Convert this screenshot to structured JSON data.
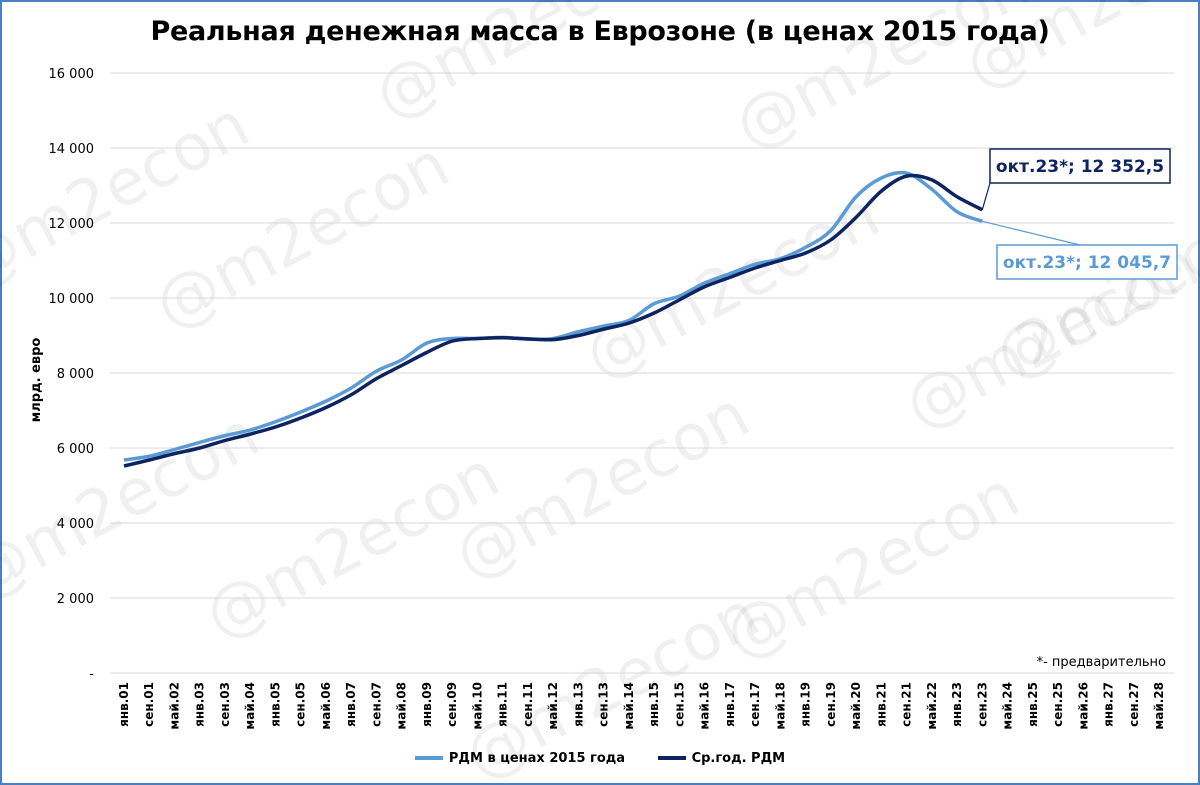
{
  "chart_data": {
    "type": "line",
    "title": "Реальная денежная масса в Еврозоне (в ценах 2015 года)",
    "ylabel": "млрд. евро",
    "ylim": [
      0,
      16000
    ],
    "yticks": [
      {
        "value": 0,
        "label": "-"
      },
      {
        "value": 2000,
        "label": "2 000"
      },
      {
        "value": 4000,
        "label": "4 000"
      },
      {
        "value": 6000,
        "label": "6 000"
      },
      {
        "value": 8000,
        "label": "8 000"
      },
      {
        "value": 10000,
        "label": "10 000"
      },
      {
        "value": 12000,
        "label": "12 000"
      },
      {
        "value": 14000,
        "label": "14 000"
      },
      {
        "value": 16000,
        "label": "16 000"
      }
    ],
    "xticks": [
      "янв.01",
      "сен.01",
      "май.02",
      "янв.03",
      "сен.03",
      "май.04",
      "янв.05",
      "сен.05",
      "май.06",
      "янв.07",
      "сен.07",
      "май.08",
      "янв.09",
      "сен.09",
      "май.10",
      "янв.11",
      "сен.11",
      "май.12",
      "янв.13",
      "сен.13",
      "май.14",
      "янв.15",
      "сен.15",
      "май.16",
      "янв.17",
      "сен.17",
      "май.18",
      "янв.19",
      "сен.19",
      "май.20",
      "янв.21",
      "сен.21",
      "май.22",
      "янв.23",
      "сен.23",
      "май.24",
      "янв.25",
      "сен.25",
      "май.26",
      "янв.27",
      "сен.27",
      "май.28"
    ],
    "grid": true,
    "legend_position": "bottom",
    "series": [
      {
        "name": "РДМ в ценах 2015 года",
        "color": "#5b9bd5",
        "points": [
          [
            "янв.01",
            5680
          ],
          [
            "сен.01",
            5780
          ],
          [
            "май.02",
            5960
          ],
          [
            "янв.03",
            6150
          ],
          [
            "сен.03",
            6330
          ],
          [
            "май.04",
            6480
          ],
          [
            "янв.05",
            6700
          ],
          [
            "сен.05",
            6960
          ],
          [
            "май.06",
            7250
          ],
          [
            "янв.07",
            7600
          ],
          [
            "сен.07",
            8050
          ],
          [
            "май.08",
            8350
          ],
          [
            "янв.09",
            8800
          ],
          [
            "сен.09",
            8920
          ],
          [
            "май.10",
            8920
          ],
          [
            "янв.11",
            8950
          ],
          [
            "сен.11",
            8900
          ],
          [
            "май.12",
            8920
          ],
          [
            "янв.13",
            9100
          ],
          [
            "сен.13",
            9250
          ],
          [
            "май.14",
            9400
          ],
          [
            "янв.15",
            9850
          ],
          [
            "сен.15",
            10050
          ],
          [
            "май.16",
            10400
          ],
          [
            "янв.17",
            10650
          ],
          [
            "сен.17",
            10900
          ],
          [
            "май.18",
            11050
          ],
          [
            "янв.19",
            11350
          ],
          [
            "сен.19",
            11800
          ],
          [
            "май.20",
            12700
          ],
          [
            "янв.21",
            13200
          ],
          [
            "сен.21",
            13330
          ],
          [
            "май.22",
            12900
          ],
          [
            "янв.23",
            12300
          ],
          [
            "сен.23",
            12045.7
          ]
        ]
      },
      {
        "name": "Ср.год. РДМ",
        "color": "#0d2461",
        "points": [
          [
            "янв.01",
            5520
          ],
          [
            "сен.01",
            5680
          ],
          [
            "май.02",
            5850
          ],
          [
            "янв.03",
            6000
          ],
          [
            "сен.03",
            6200
          ],
          [
            "май.04",
            6370
          ],
          [
            "янв.05",
            6560
          ],
          [
            "сен.05",
            6800
          ],
          [
            "май.06",
            7080
          ],
          [
            "янв.07",
            7420
          ],
          [
            "сен.07",
            7850
          ],
          [
            "май.08",
            8200
          ],
          [
            "янв.09",
            8550
          ],
          [
            "сен.09",
            8850
          ],
          [
            "май.10",
            8920
          ],
          [
            "янв.11",
            8940
          ],
          [
            "сен.11",
            8910
          ],
          [
            "май.12",
            8890
          ],
          [
            "янв.13",
            9000
          ],
          [
            "сен.13",
            9170
          ],
          [
            "май.14",
            9330
          ],
          [
            "янв.15",
            9600
          ],
          [
            "сен.15",
            9950
          ],
          [
            "май.16",
            10300
          ],
          [
            "янв.17",
            10550
          ],
          [
            "сен.17",
            10800
          ],
          [
            "май.18",
            11000
          ],
          [
            "янв.19",
            11200
          ],
          [
            "сен.19",
            11550
          ],
          [
            "май.20",
            12150
          ],
          [
            "янв.21",
            12850
          ],
          [
            "сен.21",
            13250
          ],
          [
            "май.22",
            13150
          ],
          [
            "янв.23",
            12700
          ],
          [
            "сен.23",
            12352.5
          ]
        ]
      }
    ],
    "annotations": [
      {
        "text": "окт.23*; 12 352,5",
        "series": "Ср.год. РДМ"
      },
      {
        "text": "окт.23*; 12 045,7",
        "series": "РДМ в ценах 2015 года"
      }
    ],
    "note": "*- предварительно",
    "watermark": "@m2econ"
  }
}
